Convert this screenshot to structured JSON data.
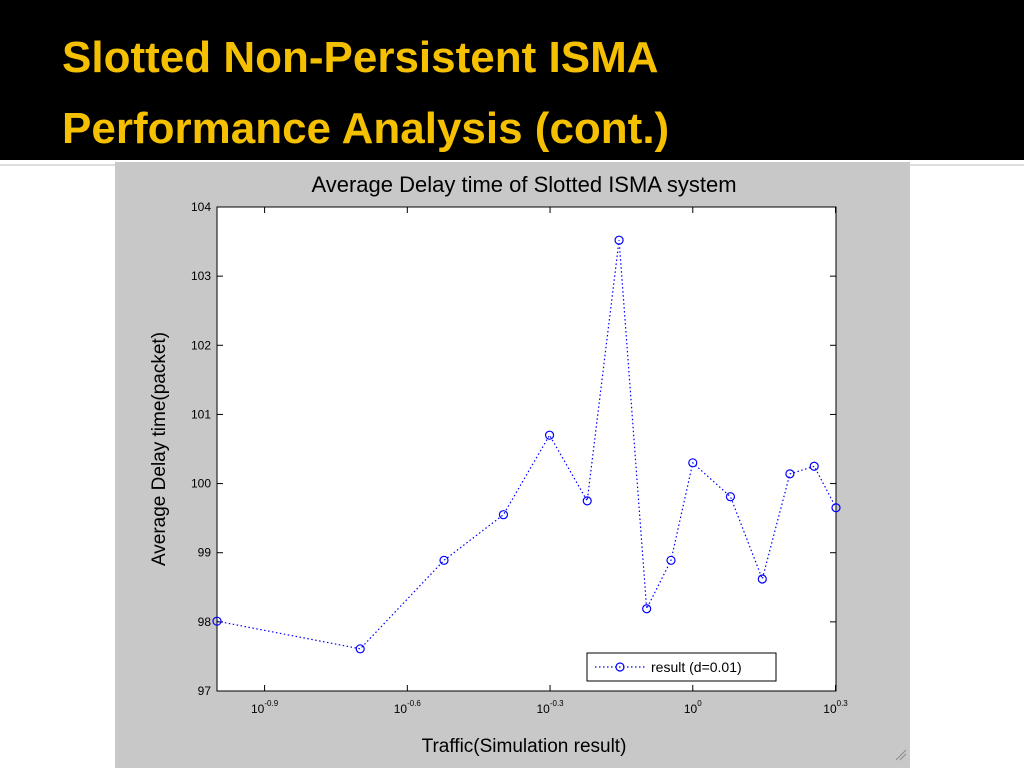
{
  "slide": {
    "title_lines": [
      "Slotted Non-Persistent ISMA",
      "Performance Analysis (cont.)"
    ]
  },
  "chart_data": {
    "type": "line",
    "title": "Average Delay time of Slotted ISMA system",
    "xlabel": "Traffic(Simulation result)",
    "ylabel": "Average Delay time(packet)",
    "x": [
      0.1,
      0.2,
      0.3,
      0.4,
      0.5,
      0.6,
      0.7,
      0.8,
      0.9,
      1.0,
      1.2,
      1.4,
      1.6,
      1.8,
      2.0
    ],
    "series": [
      {
        "name": "result (d=0.01)",
        "color": "#0000ff",
        "values": [
          98.01,
          97.61,
          98.89,
          99.55,
          100.7,
          99.75,
          103.52,
          98.19,
          98.89,
          100.3,
          99.81,
          98.62,
          100.14,
          100.25,
          99.65
        ]
      }
    ],
    "xscale": "log",
    "xlim": [
      0.1,
      2.0
    ],
    "xticks": [
      {
        "value": 0.1259,
        "label": "10^-0.9"
      },
      {
        "value": 0.2512,
        "label": "10^-0.6"
      },
      {
        "value": 0.5012,
        "label": "10^-0.3"
      },
      {
        "value": 1,
        "label": "10^0"
      },
      {
        "value": 1.9953,
        "label": "10^0.3"
      }
    ],
    "ylim": [
      97,
      104
    ],
    "yticks": [
      97,
      98,
      99,
      100,
      101,
      102,
      103,
      104
    ],
    "grid": false,
    "legend": "lower right"
  }
}
